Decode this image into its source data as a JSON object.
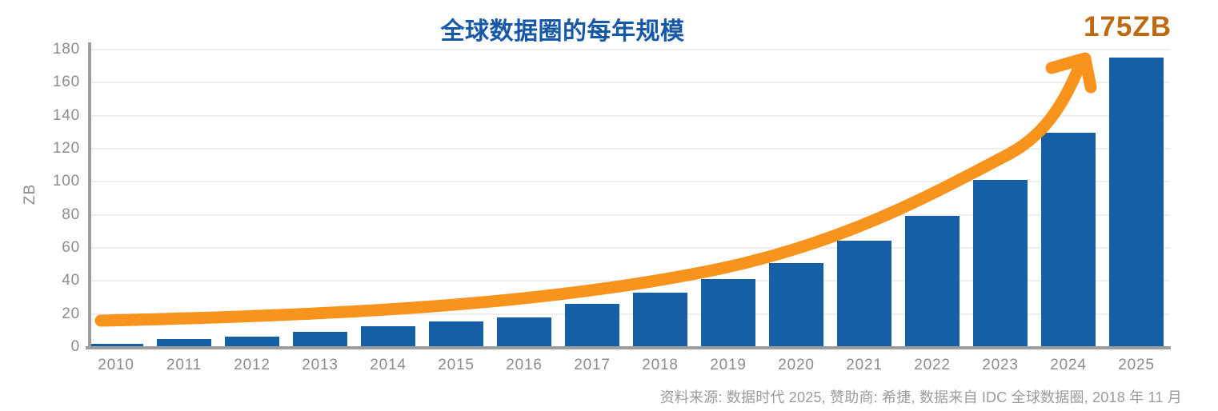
{
  "chart": {
    "title": "全球数据圈的每年规模",
    "annotation": "175ZB",
    "y_axis_label": "ZB",
    "source": "资料来源: 数据时代 2025, 赞助商: 希捷, 数据来自 IDC 全球数据圈, 2018 年 11 月"
  },
  "chart_data": {
    "type": "bar",
    "title": "全球数据圈的每年规模",
    "categories": [
      "2010",
      "2011",
      "2012",
      "2013",
      "2014",
      "2015",
      "2016",
      "2017",
      "2018",
      "2019",
      "2020",
      "2021",
      "2022",
      "2023",
      "2024",
      "2025"
    ],
    "values": [
      2,
      5,
      6.5,
      9,
      12.5,
      15.5,
      18,
      26,
      33,
      41,
      51,
      64.5,
      79.5,
      101,
      129.5,
      175
    ],
    "xlabel": "",
    "ylabel": "ZB",
    "ylim": [
      0,
      180
    ],
    "yticks": [
      0,
      20,
      40,
      60,
      80,
      100,
      120,
      140,
      160,
      180
    ],
    "grid": "horizontal",
    "legend": "none",
    "annotation": {
      "text": "175ZB",
      "target_value": 175
    },
    "trend_overlay": "orange exponential swoosh arrow from 2010 low-left up to 175ZB label",
    "colors": {
      "bar": "#155FA6",
      "trend": "#F8941E",
      "annotation_text": "#BE6A12",
      "title_text": "#1458A7",
      "axis": "#9E9E9E",
      "gridline": "#EFEFEF",
      "tick_text": "#8C8C8C",
      "source_text": "#9B9B9B"
    }
  }
}
